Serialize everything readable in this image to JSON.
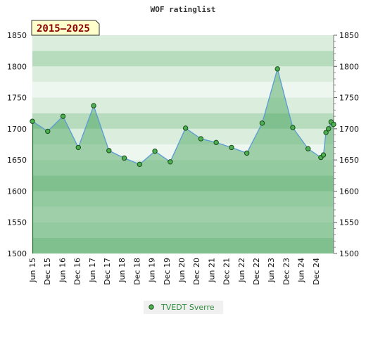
{
  "chart_data": {
    "type": "area",
    "title": "WOF ratinglist",
    "period_label": "2015–2025",
    "xlabel": "",
    "ylabel": "",
    "ylim": [
      1500,
      1850
    ],
    "yticks": [
      1500,
      1550,
      1600,
      1650,
      1700,
      1750,
      1800,
      1850
    ],
    "xtick_labels": [
      "Jun 15",
      "Dec 15",
      "Jun 16",
      "Dec 16",
      "Jun 17",
      "Dec 17",
      "Jun 18",
      "Dec 18",
      "Jun 19",
      "Dec 19",
      "Jun 20",
      "Dec 20",
      "Jun 21",
      "Dec 21",
      "Jun 22",
      "Dec 22",
      "Jun 23",
      "Dec 23",
      "Jun 24",
      "Dec 24"
    ],
    "grid": true,
    "legend_position": "bottom-center",
    "series": [
      {
        "name": "TVEDT Sverre",
        "color": "#2e8b3e",
        "points": [
          {
            "x": "2015-06",
            "y": 1712
          },
          {
            "x": "2015-12",
            "y": 1696
          },
          {
            "x": "2016-06",
            "y": 1720
          },
          {
            "x": "2016-12",
            "y": 1670
          },
          {
            "x": "2017-06",
            "y": 1737
          },
          {
            "x": "2017-12",
            "y": 1665
          },
          {
            "x": "2018-06",
            "y": 1653
          },
          {
            "x": "2018-12",
            "y": 1643
          },
          {
            "x": "2019-06",
            "y": 1664
          },
          {
            "x": "2019-12",
            "y": 1647
          },
          {
            "x": "2020-06",
            "y": 1701
          },
          {
            "x": "2020-12",
            "y": 1684
          },
          {
            "x": "2021-06",
            "y": 1678
          },
          {
            "x": "2021-12",
            "y": 1670
          },
          {
            "x": "2022-06",
            "y": 1661
          },
          {
            "x": "2022-12",
            "y": 1709
          },
          {
            "x": "2023-06",
            "y": 1796
          },
          {
            "x": "2023-12",
            "y": 1702
          },
          {
            "x": "2024-06",
            "y": 1668
          },
          {
            "x": "2024-11",
            "y": 1654
          },
          {
            "x": "2024-12",
            "y": 1658
          },
          {
            "x": "2025-01",
            "y": 1694
          },
          {
            "x": "2025-02",
            "y": 1700
          },
          {
            "x": "2025-03",
            "y": 1711
          },
          {
            "x": "2025-04",
            "y": 1707
          }
        ]
      }
    ],
    "colors": {
      "line": "#5b9bd5",
      "marker_fill": "#4caf50",
      "marker_stroke": "#1b4d1b",
      "band_light": "#eef7ef",
      "band_mid": "#dbeedd",
      "band_dark": "#b6dcbd",
      "fill": "#3f9e55",
      "badge_bg": "#ffffcc",
      "badge_text": "#8b0000",
      "legend_text": "#2e8b3e",
      "legend_bg": "#f0f0f0"
    }
  }
}
